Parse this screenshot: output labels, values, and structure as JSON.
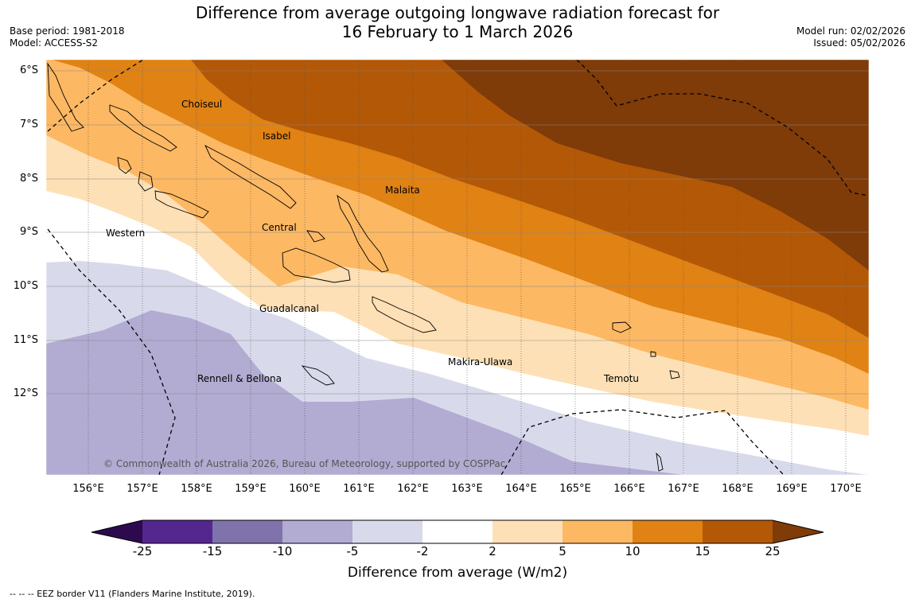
{
  "header": {
    "title_line1": "Difference from average outgoing longwave radiation forecast for",
    "title_line2": "16 February to 1 March 2026",
    "base_period": "Base period: 1981-2018",
    "model": "Model: ACCESS-S2",
    "model_run": "Model run: 02/02/2026",
    "issued": "Issued: 05/02/2026"
  },
  "map": {
    "lat_labels": [
      "6°S",
      "7°S",
      "8°S",
      "9°S",
      "10°S",
      "11°S",
      "12°S"
    ],
    "lon_labels": [
      "156°E",
      "157°E",
      "158°E",
      "159°E",
      "160°E",
      "161°E",
      "162°E",
      "163°E",
      "164°E",
      "165°E",
      "166°E",
      "167°E",
      "168°E",
      "169°E",
      "170°E"
    ],
    "places": {
      "choiseul": "Choiseul",
      "isabel": "Isabel",
      "malaita": "Malaita",
      "western": "Western",
      "central": "Central",
      "guadalcanal": "Guadalcanal",
      "makira": "Makira-Ulawa",
      "rennell": "Rennell & Bellona",
      "temotu": "Temotu"
    },
    "copyright": "© Commonwealth of Australia 2026, Bureau of Meteorology, supported by COSPPac"
  },
  "colorbar": {
    "ticks": [
      "-25",
      "-15",
      "-10",
      "-5",
      "-2",
      "2",
      "5",
      "10",
      "15",
      "25"
    ],
    "colors": [
      "#2d0a4e",
      "#54278f",
      "#8073ac",
      "#b2abd2",
      "#d8daeb",
      "#ffffff",
      "#fee0b6",
      "#fdb863",
      "#e08214",
      "#b35806",
      "#7f3b08"
    ],
    "title": "Difference from average (W/m2)"
  },
  "footer": {
    "eez_note": "--  --  -- EEZ border V11 (Flanders Marine Institute, 2019)."
  }
}
